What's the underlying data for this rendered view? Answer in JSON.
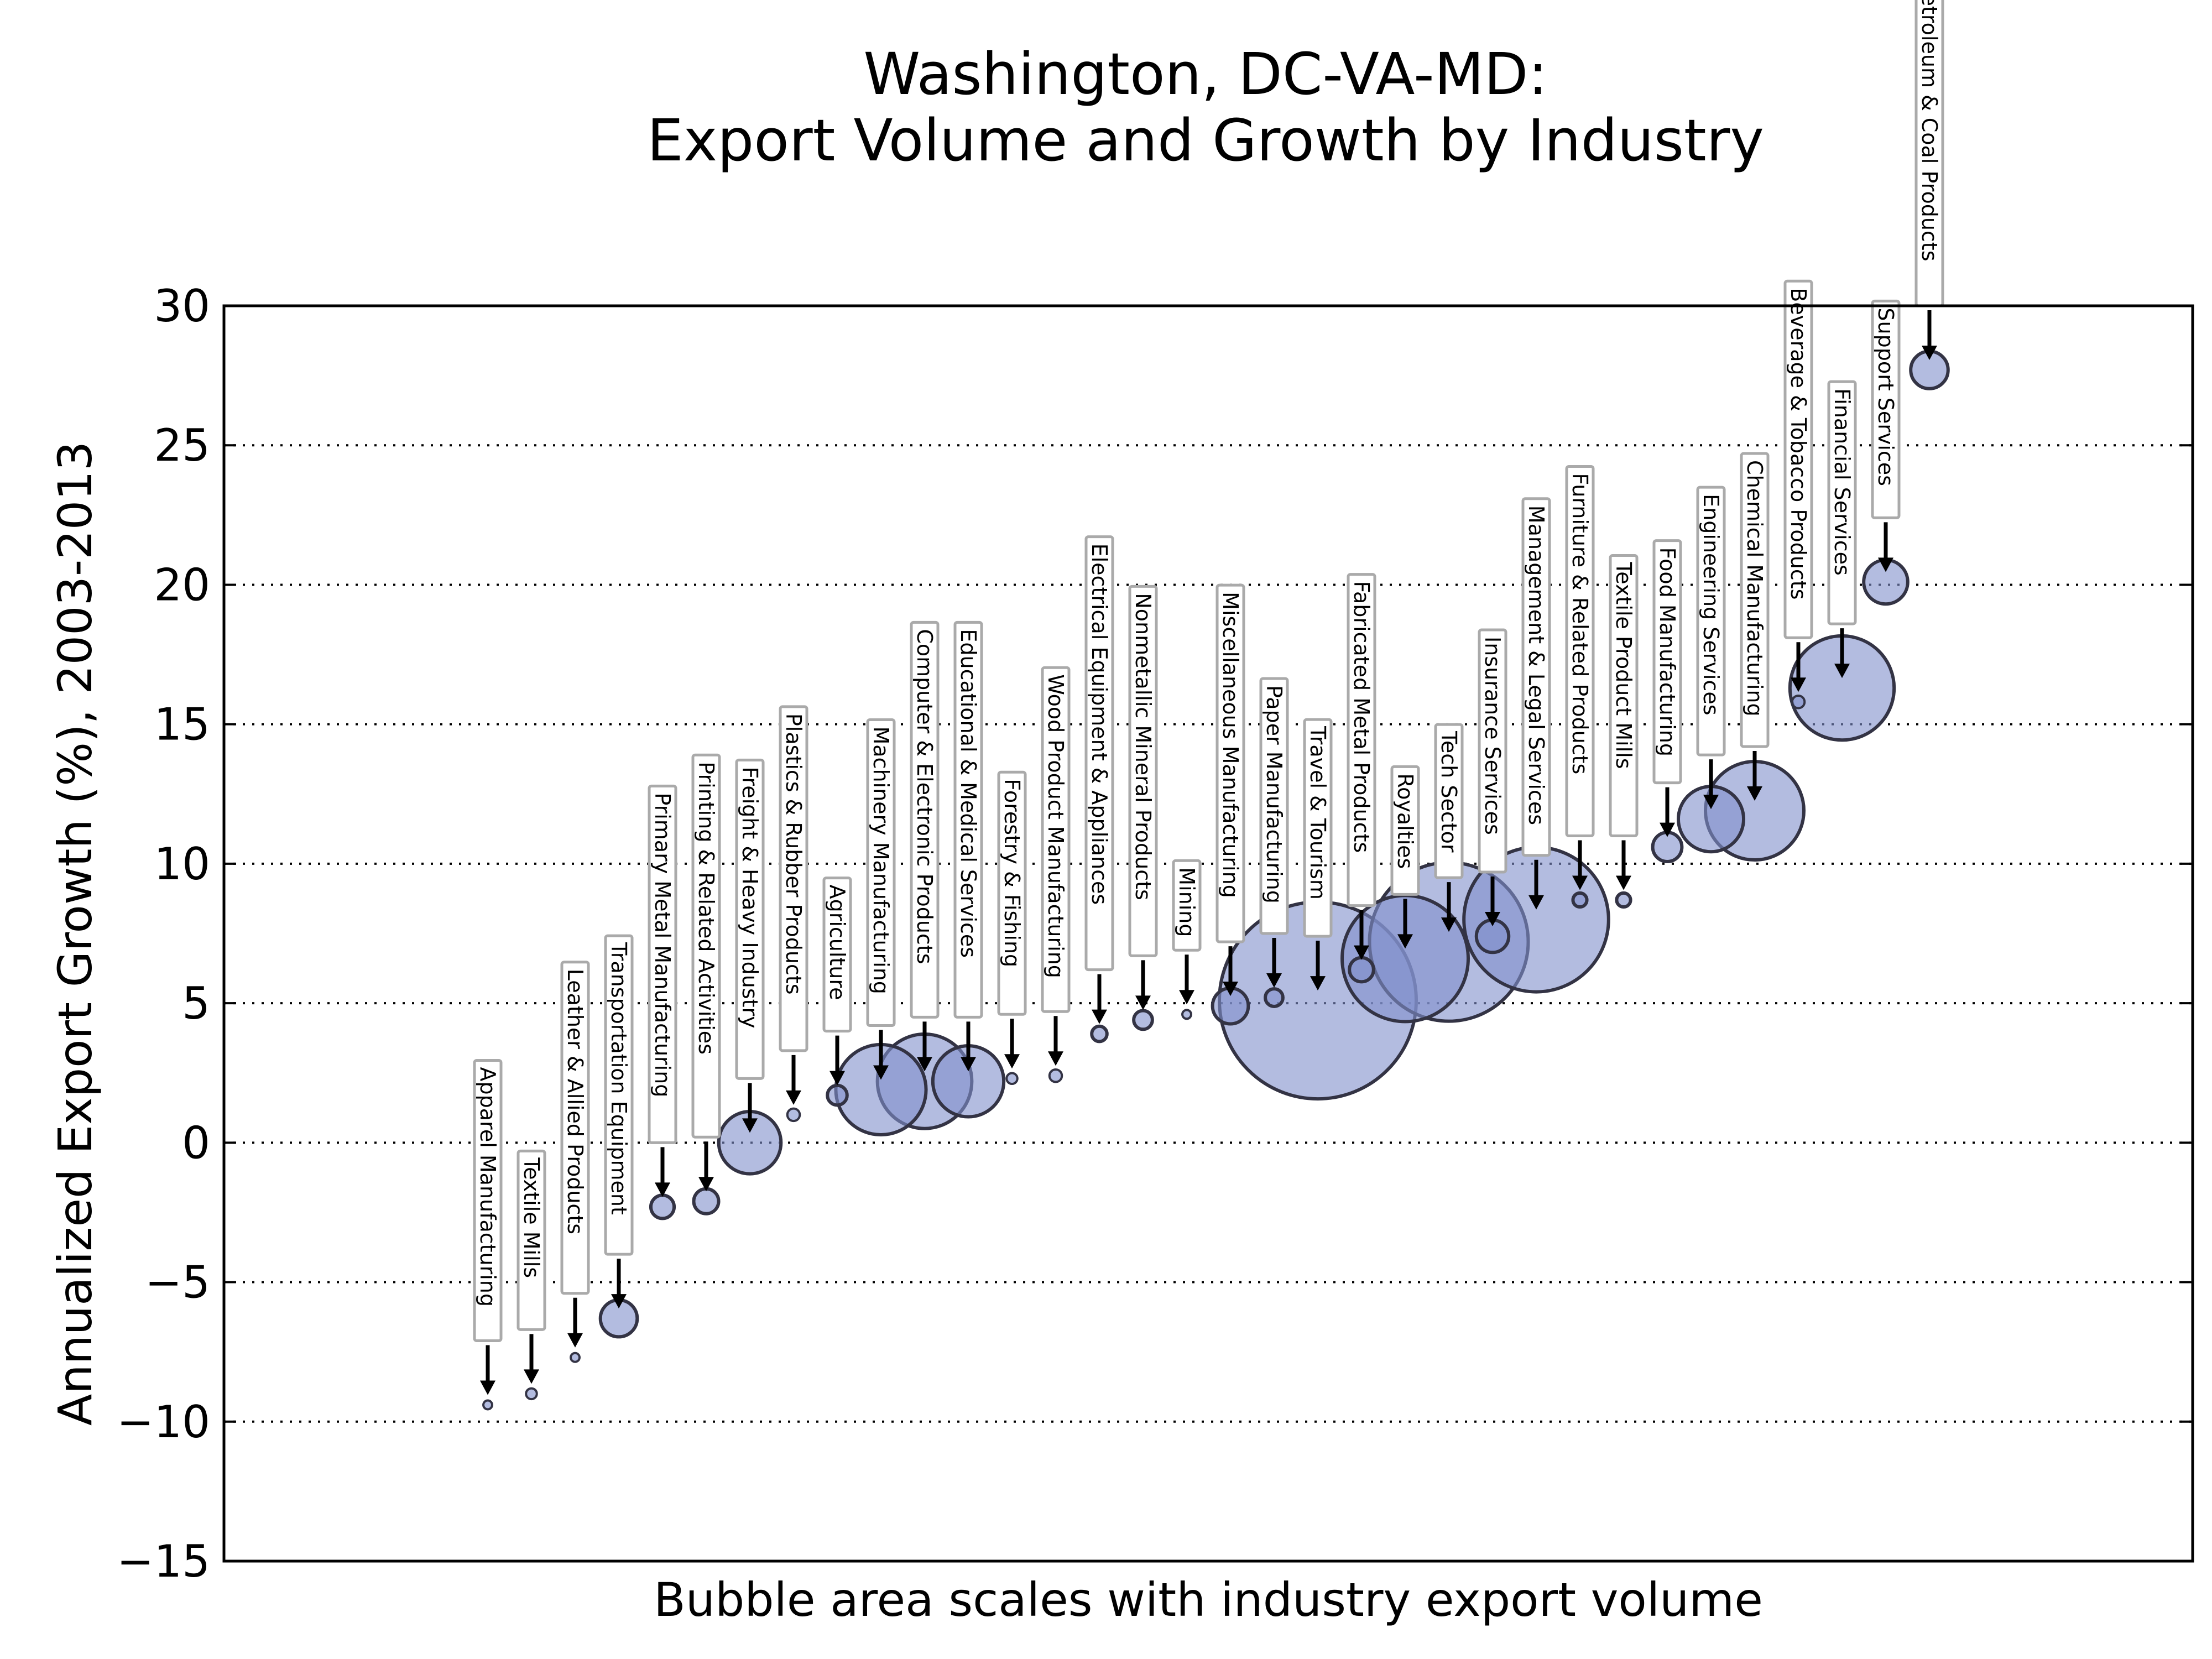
{
  "chart_data": {
    "type": "scatter",
    "title_lines": [
      "Washington, DC-VA-MD:",
      "Export Volume and Growth by Industry"
    ],
    "xlabel": "Bubble area scales with industry export volume",
    "ylabel": "Annualized Export Growth (%), 2003-2013",
    "ylim": [
      -15,
      30
    ],
    "yticks": [
      30,
      25,
      20,
      15,
      10,
      5,
      0,
      -5,
      -10,
      -15
    ],
    "ytick_labels": [
      "30",
      "25",
      "20",
      "15",
      "10",
      "5",
      "0",
      "−5",
      "−10",
      "−15"
    ],
    "grid": "horizontal dotted",
    "bubble_color": "#8090cc",
    "series": [
      {
        "values": [
          {
            "industry": "Apparel Manufacturing",
            "growth": -9.4,
            "relative_volume": 0.002
          },
          {
            "industry": "Textile Mills",
            "growth": -9.0,
            "relative_volume": 0.003
          },
          {
            "industry": "Leather & Allied Products",
            "growth": -7.7,
            "relative_volume": 0.002
          },
          {
            "industry": "Transportation Equipment",
            "growth": -6.3,
            "relative_volume": 0.035
          },
          {
            "industry": "Primary Metal Manufacturing",
            "growth": -2.3,
            "relative_volume": 0.014
          },
          {
            "industry": "Printing & Related Activities",
            "growth": -2.1,
            "relative_volume": 0.016
          },
          {
            "industry": "Freight & Heavy Industry",
            "growth": 0.0,
            "relative_volume": 0.1
          },
          {
            "industry": "Plastics & Rubber Products",
            "growth": 1.0,
            "relative_volume": 0.004
          },
          {
            "industry": "Agriculture",
            "growth": 1.7,
            "relative_volume": 0.01
          },
          {
            "industry": "Machinery Manufacturing",
            "growth": 1.9,
            "relative_volume": 0.21
          },
          {
            "industry": "Computer & Electronic Products",
            "growth": 2.2,
            "relative_volume": 0.23
          },
          {
            "industry": "Educational & Medical Services",
            "growth": 2.2,
            "relative_volume": 0.13
          },
          {
            "industry": "Forestry & Fishing",
            "growth": 2.3,
            "relative_volume": 0.003
          },
          {
            "industry": "Wood Product Manufacturing",
            "growth": 2.4,
            "relative_volume": 0.004
          },
          {
            "industry": "Electrical Equipment & Appliances",
            "growth": 3.9,
            "relative_volume": 0.006
          },
          {
            "industry": "Nonmetallic Mineral Products",
            "growth": 4.4,
            "relative_volume": 0.009
          },
          {
            "industry": "Mining",
            "growth": 4.6,
            "relative_volume": 0.002
          },
          {
            "industry": "Miscellaneous Manufacturing",
            "growth": 4.9,
            "relative_volume": 0.033
          },
          {
            "industry": "Paper Manufacturing",
            "growth": 5.2,
            "relative_volume": 0.008
          },
          {
            "industry": "Travel & Tourism",
            "growth": 5.1,
            "relative_volume": 1.0
          },
          {
            "industry": "Fabricated Metal Products",
            "growth": 6.2,
            "relative_volume": 0.015
          },
          {
            "industry": "Royalties",
            "growth": 6.6,
            "relative_volume": 0.41
          },
          {
            "industry": "Tech Sector",
            "growth": 7.2,
            "relative_volume": 0.65
          },
          {
            "industry": "Insurance Services",
            "growth": 7.4,
            "relative_volume": 0.027
          },
          {
            "industry": "Management & Legal Services",
            "growth": 8.0,
            "relative_volume": 0.54
          },
          {
            "industry": "Furniture & Related Products",
            "growth": 8.7,
            "relative_volume": 0.005
          },
          {
            "industry": "Textile Product Mills",
            "growth": 8.7,
            "relative_volume": 0.005
          },
          {
            "industry": "Food Manufacturing",
            "growth": 10.6,
            "relative_volume": 0.022
          },
          {
            "industry": "Engineering Services",
            "growth": 11.6,
            "relative_volume": 0.11
          },
          {
            "industry": "Chemical Manufacturing",
            "growth": 11.9,
            "relative_volume": 0.25
          },
          {
            "industry": "Beverage & Tobacco Products",
            "growth": 15.8,
            "relative_volume": 0.004
          },
          {
            "industry": "Financial Services",
            "growth": 16.3,
            "relative_volume": 0.28
          },
          {
            "industry": "Support Services",
            "growth": 20.1,
            "relative_volume": 0.05
          },
          {
            "industry": "Petroleum & Coal Products",
            "growth": 27.7,
            "relative_volume": 0.036
          }
        ]
      }
    ]
  }
}
